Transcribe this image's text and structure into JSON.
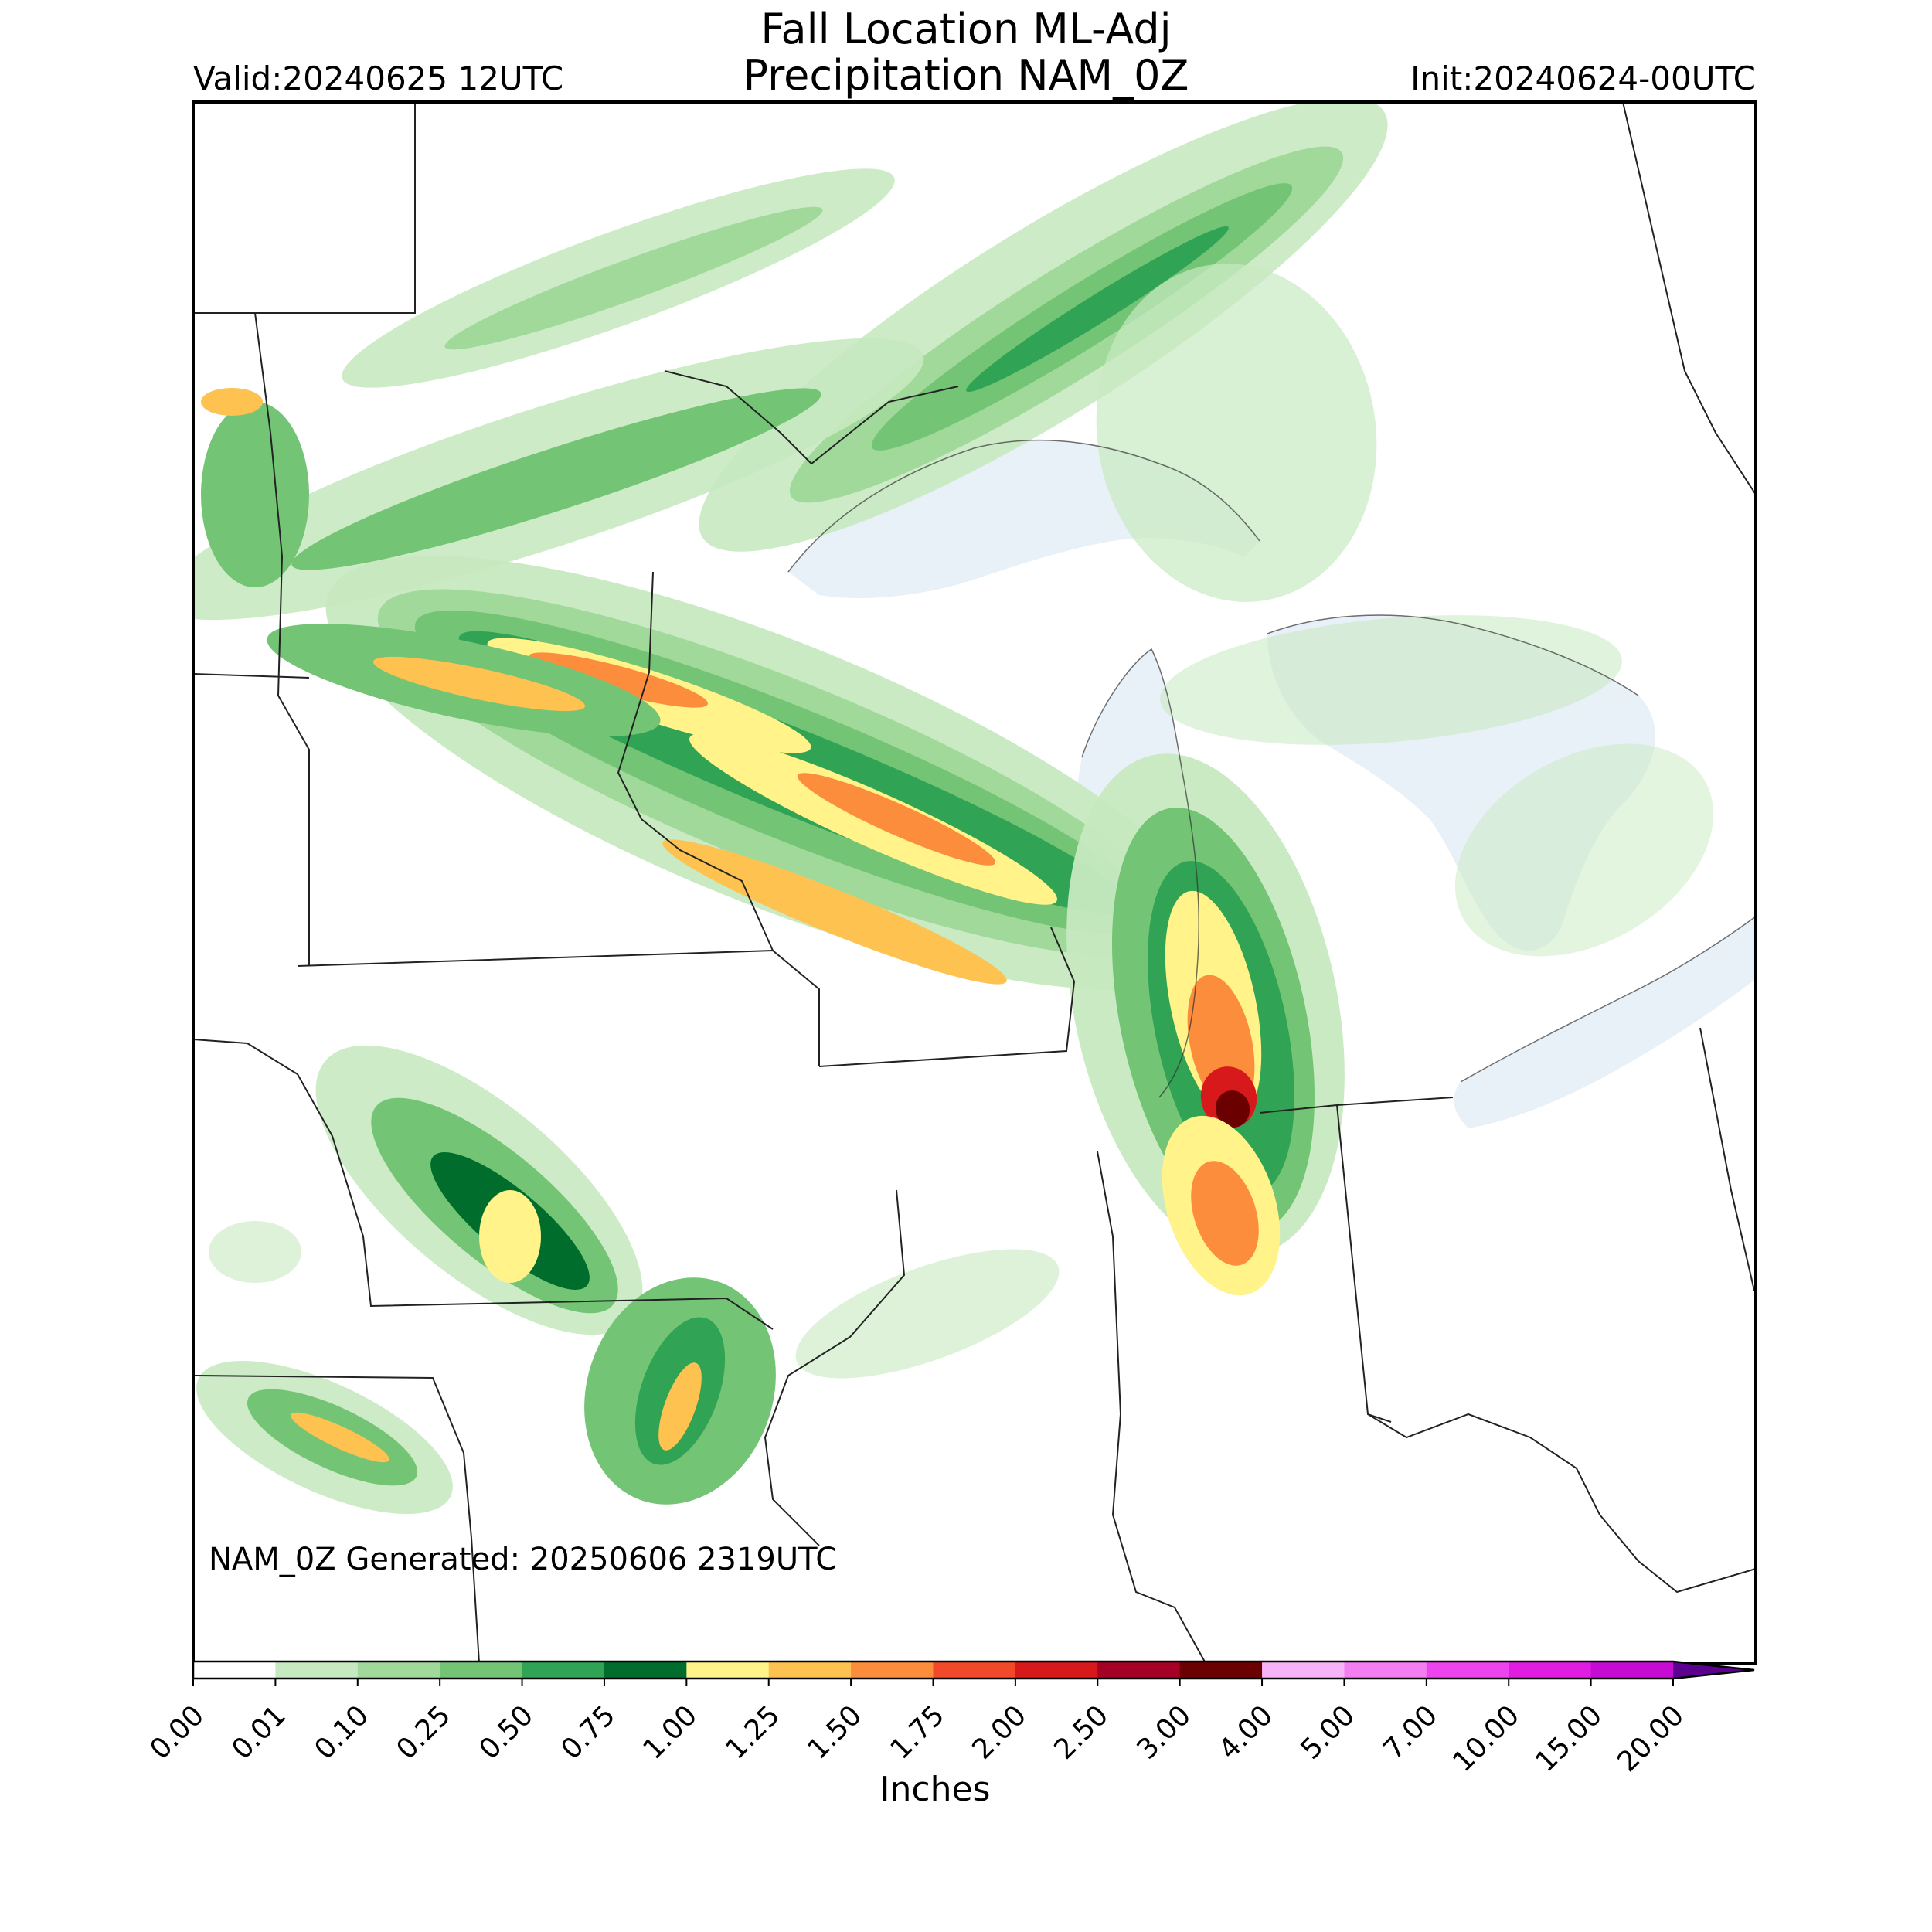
{
  "header": {
    "title_line1": "Fall Location ML-Adj",
    "title_line2": "Precipitation NAM_0Z",
    "valid": "Valid:20240625 12UTC",
    "init": "Init:20240624-00UTC"
  },
  "map": {
    "generated_label": "NAM_0Z Generated: 20250606 2319UTC",
    "lake_color": "#e8f0f8"
  },
  "colorbar": {
    "units": "Inches",
    "ticks": [
      "0.00",
      "0.01",
      "0.10",
      "0.25",
      "0.50",
      "0.75",
      "1.00",
      "1.25",
      "1.50",
      "1.75",
      "2.00",
      "2.50",
      "3.00",
      "4.00",
      "5.00",
      "7.00",
      "10.00",
      "15.00",
      "20.00"
    ],
    "colors": [
      "#ffffff",
      "#c7e9c0",
      "#a1d99b",
      "#74c476",
      "#31a354",
      "#006d2c",
      "#fff38a",
      "#fdc24f",
      "#fc8d3c",
      "#f3492b",
      "#d7191c",
      "#a50026",
      "#6b0000",
      "#f7b3f7",
      "#f27ef2",
      "#ee44ee",
      "#e11de1",
      "#c60cd3",
      "#8a00c8"
    ],
    "extend_color": "#5b008f"
  }
}
